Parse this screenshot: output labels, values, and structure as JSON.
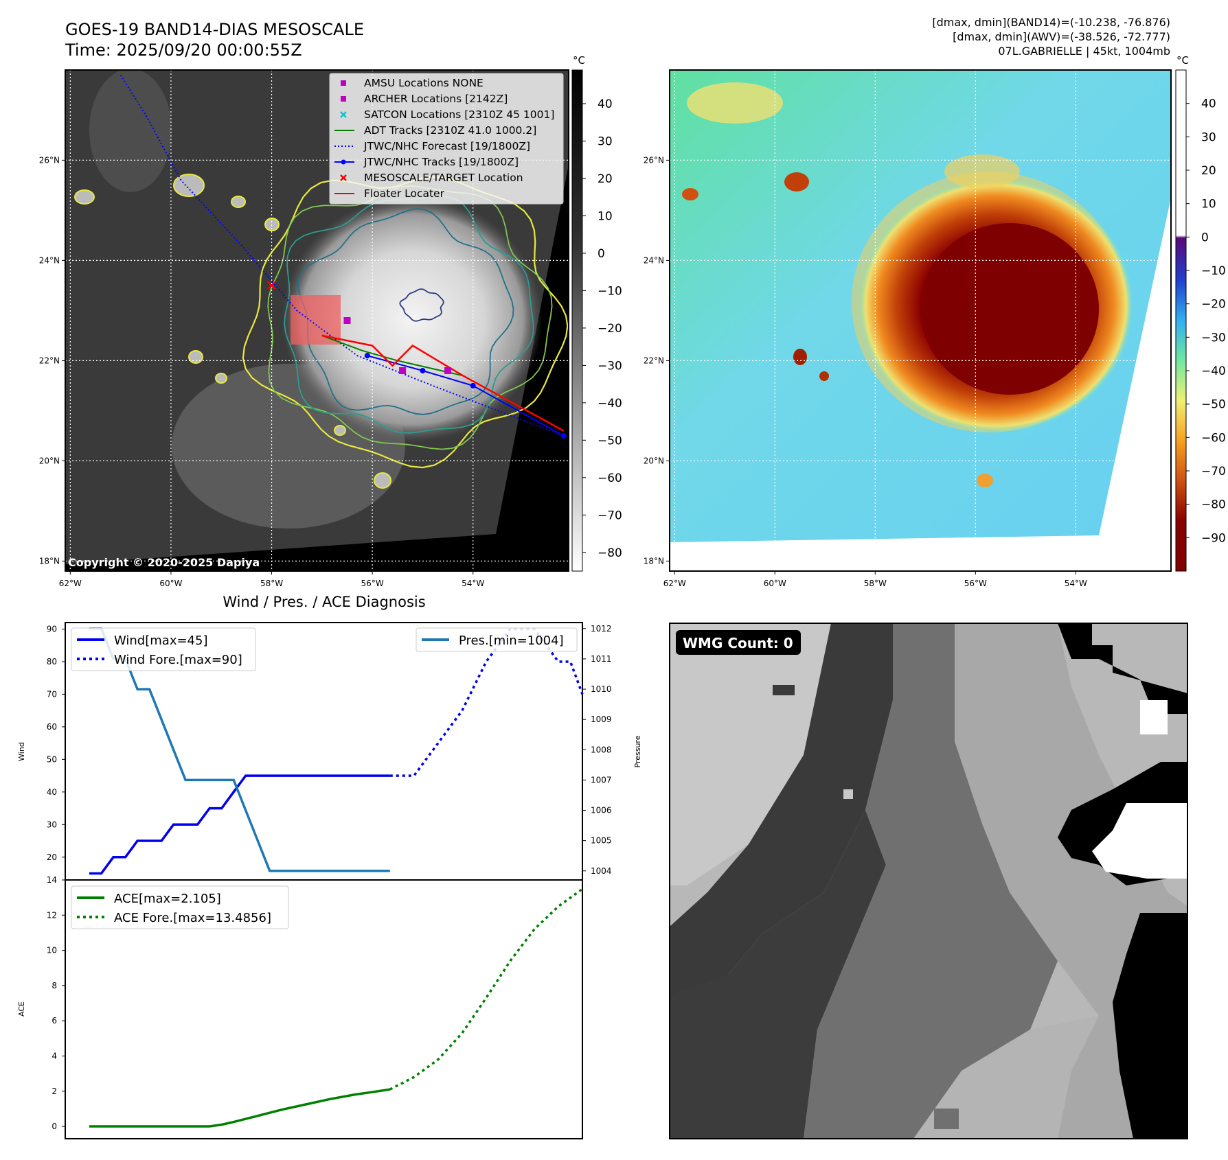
{
  "header": {
    "title_line1": "GOES-19 BAND14-DIAS MESOSCALE",
    "title_line2": "Time: 2025/09/20 00:00:55Z",
    "info_line1": "[dmax, dmin](BAND14)=(-10.238, -76.876)",
    "info_line2": "[dmax, dmin](AWV)=(-38.526, -72.777)",
    "info_line3": "07L.GABRIELLE | 45kt, 1004mb"
  },
  "copyright": "Copyright © 2020-2025 Dapiya",
  "colors": {
    "wind": "#0000ee",
    "pressure": "#1f77b4",
    "ace": "#008000",
    "legend_amsu": "#c000c0",
    "legend_satcon": "#17becf",
    "legend_target": "#ff0000",
    "legend_floater": "#ff0000",
    "legend_adt": "#008000",
    "legend_jtwc": "#0000ff"
  },
  "maps": {
    "lon_ticks": [
      "62°W",
      "60°W",
      "58°W",
      "56°W",
      "54°W"
    ],
    "lat_ticks": [
      "26°N",
      "24°N",
      "22°N",
      "20°N",
      "18°N"
    ],
    "lon_values": [
      -62,
      -60,
      -58,
      -56,
      -54
    ],
    "lat_values": [
      26,
      24,
      22,
      20,
      18
    ],
    "lon_range": [
      -62.1,
      -52.1
    ],
    "lat_range": [
      17.8,
      27.8
    ],
    "ir": {
      "colorbar_unit": "°C",
      "colorbar_ticks": [
        "40",
        "30",
        "20",
        "10",
        "0",
        "−10",
        "−20",
        "−30",
        "−40",
        "−50",
        "−60",
        "−70",
        "−80"
      ],
      "colorbar_values": [
        40,
        30,
        20,
        10,
        0,
        -10,
        -20,
        -30,
        -40,
        -50,
        -60,
        -70,
        -80
      ],
      "colorbar_range": [
        -85,
        49
      ],
      "legend": [
        {
          "label": "AMSU Locations NONE",
          "marker": "square",
          "color": "#c000c0"
        },
        {
          "label": "ARCHER Locations [2142Z]",
          "marker": "square",
          "color": "#c000c0"
        },
        {
          "label": "SATCON Locations [2310Z 45 1001]",
          "marker": "x",
          "color": "#17becf"
        },
        {
          "label": "ADT Tracks [2310Z 41.0 1000.2]",
          "marker": "line",
          "color": "#008000"
        },
        {
          "label": "JTWC/NHC Forecast [19/1800Z]",
          "marker": "dotted",
          "color": "#0000ff"
        },
        {
          "label": "JTWC/NHC Tracks [19/1800Z]",
          "marker": "line-dot",
          "color": "#0000ff"
        },
        {
          "label": "MESOSCALE/TARGET Location",
          "marker": "x",
          "color": "#ff0000"
        },
        {
          "label": "Floater Locater",
          "marker": "line",
          "color": "#ff0000"
        }
      ],
      "jtwc_forecast": [
        [
          -61.0,
          27.7
        ],
        [
          -60.5,
          26.9
        ],
        [
          -59.8,
          25.6
        ],
        [
          -58.6,
          24.3
        ],
        [
          -57.5,
          23.0
        ],
        [
          -56.3,
          22.1
        ],
        [
          -54.8,
          21.5
        ],
        [
          -53.5,
          21.0
        ],
        [
          -52.2,
          20.5
        ]
      ],
      "jtwc_track": [
        [
          -56.1,
          22.1
        ],
        [
          -55.0,
          21.8
        ],
        [
          -54.0,
          21.5
        ],
        [
          -52.2,
          20.5
        ]
      ],
      "adt_track": [
        [
          -57.0,
          22.5
        ],
        [
          -56.2,
          22.2
        ],
        [
          -55.5,
          22.0
        ],
        [
          -54.2,
          21.7
        ]
      ],
      "archer": [
        [
          -56.5,
          22.8
        ],
        [
          -55.4,
          21.8
        ],
        [
          -54.5,
          21.8
        ]
      ],
      "target": [
        [
          -58.0,
          23.5
        ]
      ]
    },
    "awv": {
      "colorbar_unit": "°C",
      "colorbar_ticks": [
        "40",
        "30",
        "20",
        "10",
        "0",
        "−10",
        "−20",
        "−30",
        "−40",
        "−50",
        "−60",
        "−70",
        "−80",
        "−90"
      ],
      "colorbar_values": [
        40,
        30,
        20,
        10,
        0,
        -10,
        -20,
        -30,
        -40,
        -50,
        -60,
        -70,
        -80,
        -90
      ],
      "colorbar_range": [
        -100,
        50
      ]
    }
  },
  "chart_data": [
    {
      "type": "line",
      "title": "Wind / Pres. / ACE Diagnosis",
      "ylabel": "Wind",
      "y2label": "Pressure",
      "ylim": [
        13,
        92
      ],
      "y2lim": [
        1003.7,
        1012.2
      ],
      "xlim": [
        0,
        43
      ],
      "yticks": [
        20,
        30,
        40,
        50,
        60,
        70,
        80,
        90
      ],
      "y2ticks": [
        1004,
        1005,
        1006,
        1007,
        1008,
        1009,
        1010,
        1011,
        1012
      ],
      "legend_left": [
        "Wind[max=45]",
        "Wind Fore.[max=90]"
      ],
      "legend_right": [
        "Pres.[min=1004]"
      ],
      "series": [
        {
          "name": "Wind[max=45]",
          "x": [
            2,
            3,
            4,
            5,
            6,
            7,
            8,
            9,
            10,
            11,
            12,
            13,
            14,
            15,
            16,
            17,
            18,
            19,
            20,
            21,
            22,
            23,
            24,
            25,
            26,
            27
          ],
          "values": [
            15,
            15,
            20,
            20,
            25,
            25,
            25,
            30,
            30,
            30,
            35,
            35,
            40,
            45,
            45,
            45,
            45,
            45,
            45,
            45,
            45,
            45,
            45,
            45,
            45,
            45
          ]
        },
        {
          "name": "Wind Fore.[max=90]",
          "x": [
            27,
            29,
            31,
            33,
            35,
            37,
            39,
            41,
            42,
            43
          ],
          "values": [
            45,
            45,
            55,
            65,
            80,
            90,
            90,
            80,
            80,
            70
          ]
        },
        {
          "name": "Pres.[min=1004]",
          "x": [
            2,
            3,
            4,
            5,
            6,
            7,
            8,
            9,
            10,
            11,
            12,
            13,
            14,
            15,
            16,
            17,
            18,
            19,
            20,
            21,
            22,
            23,
            24,
            25,
            26,
            27
          ],
          "values": [
            1012,
            1012,
            1011,
            1011,
            1010,
            1010,
            1009,
            1008,
            1007,
            1007,
            1007,
            1007,
            1007,
            1006,
            1005,
            1004,
            1004,
            1004,
            1004,
            1004,
            1004,
            1004,
            1004,
            1004,
            1004,
            1004
          ]
        }
      ]
    },
    {
      "type": "line",
      "ylabel": "ACE",
      "ylim": [
        -0.7,
        14
      ],
      "xlim": [
        0,
        43
      ],
      "yticks": [
        0,
        2,
        4,
        6,
        8,
        10,
        12,
        14
      ],
      "legend": [
        "ACE[max=2.105]",
        "ACE Fore.[max=13.4856]"
      ],
      "series": [
        {
          "name": "ACE[max=2.105]",
          "x": [
            2,
            5,
            8,
            11,
            12,
            13,
            14,
            16,
            18,
            20,
            22,
            24,
            26,
            27
          ],
          "values": [
            0,
            0,
            0,
            0,
            0,
            0.1,
            0.25,
            0.6,
            0.95,
            1.25,
            1.55,
            1.8,
            2.0,
            2.105
          ]
        },
        {
          "name": "ACE Fore.[max=13.4856]",
          "x": [
            27,
            29,
            31,
            33,
            35,
            37,
            39,
            41,
            43
          ],
          "values": [
            2.105,
            2.8,
            3.8,
            5.3,
            7.3,
            9.4,
            11.2,
            12.5,
            13.4856
          ]
        }
      ]
    }
  ],
  "wmg": {
    "label": "WMG Count: 0"
  }
}
